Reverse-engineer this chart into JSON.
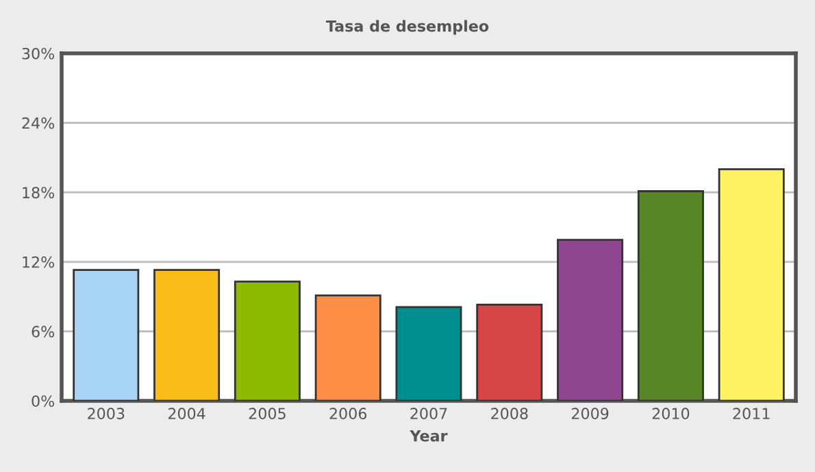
{
  "chart_data": {
    "type": "bar",
    "title": "Tasa de desempleo",
    "xlabel": "Year",
    "categories": [
      "2003",
      "2004",
      "2005",
      "2006",
      "2007",
      "2008",
      "2009",
      "2010",
      "2011"
    ],
    "values": [
      11.3,
      11.3,
      10.3,
      9.1,
      8.1,
      8.3,
      13.9,
      18.1,
      20.0
    ],
    "colors": [
      "#a8d4f5",
      "#f8bd19",
      "#8bba00",
      "#ff8e46",
      "#008e8e",
      "#d64646",
      "#8e468e",
      "#588526",
      "#fff263"
    ],
    "ylim": [
      0,
      30
    ],
    "yticks": [
      {
        "value": 0,
        "label": "0%"
      },
      {
        "value": 6,
        "label": "6%"
      },
      {
        "value": 12,
        "label": "12%"
      },
      {
        "value": 18,
        "label": "18%"
      },
      {
        "value": 24,
        "label": "24%"
      },
      {
        "value": 30,
        "label": "30%"
      }
    ],
    "grid": "y",
    "legend": false
  }
}
